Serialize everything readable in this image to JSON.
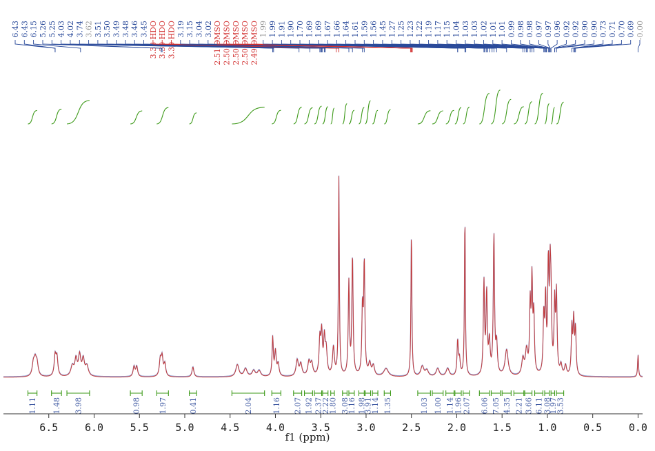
{
  "chart_data": {
    "type": "line",
    "title": "",
    "xlabel": "f1 (ppm)",
    "ylabel": "",
    "xlim": [
      7.0,
      -0.05
    ],
    "x_reversed": true,
    "ticks": [
      "6.5",
      "6.0",
      "5.5",
      "5.0",
      "4.5",
      "4.0",
      "3.5",
      "3.0",
      "2.5",
      "2.0",
      "1.5",
      "1.0",
      "0.5",
      "0.0"
    ],
    "tick_values": [
      6.5,
      6.0,
      5.5,
      5.0,
      4.5,
      4.0,
      3.5,
      3.0,
      2.5,
      2.0,
      1.5,
      1.0,
      0.5,
      0.0
    ],
    "peak_labels": [
      {
        "text": "6.43",
        "color": "#2a4a9a"
      },
      {
        "text": "6.43",
        "color": "#2a4a9a"
      },
      {
        "text": "6.15",
        "color": "#2a4a9a"
      },
      {
        "text": "5.26",
        "color": "#2a4a9a"
      },
      {
        "text": "5.25",
        "color": "#2a4a9a"
      },
      {
        "text": "4.03",
        "color": "#2a4a9a"
      },
      {
        "text": "4.02",
        "color": "#2a4a9a"
      },
      {
        "text": "3.74",
        "color": "#2a4a9a"
      },
      {
        "text": "3.62",
        "color": "#999999"
      },
      {
        "text": "3.51",
        "color": "#2a4a9a"
      },
      {
        "text": "3.50",
        "color": "#2a4a9a"
      },
      {
        "text": "3.49",
        "color": "#2a4a9a"
      },
      {
        "text": "3.48",
        "color": "#2a4a9a"
      },
      {
        "text": "3.46",
        "color": "#2a4a9a"
      },
      {
        "text": "3.45",
        "color": "#2a4a9a"
      },
      {
        "text": "3.33 HDO",
        "color": "#d23030"
      },
      {
        "text": "3.30 HDO",
        "color": "#d23030"
      },
      {
        "text": "3.30 HDO",
        "color": "#d23030"
      },
      {
        "text": "3.19",
        "color": "#2a4a9a"
      },
      {
        "text": "3.15",
        "color": "#2a4a9a"
      },
      {
        "text": "3.04",
        "color": "#2a4a9a"
      },
      {
        "text": "3.02",
        "color": "#2a4a9a"
      },
      {
        "text": "2.51 DMSO",
        "color": "#d23030"
      },
      {
        "text": "2.50 DMSO",
        "color": "#d23030"
      },
      {
        "text": "2.50 DMSO",
        "color": "#d23030"
      },
      {
        "text": "2.50 DMSO",
        "color": "#d23030"
      },
      {
        "text": "2.49 DMSO",
        "color": "#d23030"
      },
      {
        "text": "1.99",
        "color": "#999999"
      },
      {
        "text": "1.99",
        "color": "#2a4a9a"
      },
      {
        "text": "1.91",
        "color": "#2a4a9a"
      },
      {
        "text": "1.90",
        "color": "#2a4a9a"
      },
      {
        "text": "1.70",
        "color": "#2a4a9a"
      },
      {
        "text": "1.69",
        "color": "#2a4a9a"
      },
      {
        "text": "1.69",
        "color": "#2a4a9a"
      },
      {
        "text": "1.67",
        "color": "#2a4a9a"
      },
      {
        "text": "1.66",
        "color": "#2a4a9a"
      },
      {
        "text": "1.64",
        "color": "#2a4a9a"
      },
      {
        "text": "1.61",
        "color": "#2a4a9a"
      },
      {
        "text": "1.59",
        "color": "#2a4a9a"
      },
      {
        "text": "1.56",
        "color": "#2a4a9a"
      },
      {
        "text": "1.45",
        "color": "#2a4a9a"
      },
      {
        "text": "1.27",
        "color": "#2a4a9a"
      },
      {
        "text": "1.25",
        "color": "#2a4a9a"
      },
      {
        "text": "1.23",
        "color": "#2a4a9a"
      },
      {
        "text": "1.22",
        "color": "#2a4a9a"
      },
      {
        "text": "1.19",
        "color": "#2a4a9a"
      },
      {
        "text": "1.17",
        "color": "#2a4a9a"
      },
      {
        "text": "1.15",
        "color": "#2a4a9a"
      },
      {
        "text": "1.04",
        "color": "#2a4a9a"
      },
      {
        "text": "1.03",
        "color": "#2a4a9a"
      },
      {
        "text": "1.03",
        "color": "#2a4a9a"
      },
      {
        "text": "1.02",
        "color": "#2a4a9a"
      },
      {
        "text": "1.01",
        "color": "#2a4a9a"
      },
      {
        "text": "1.01",
        "color": "#2a4a9a"
      },
      {
        "text": "0.99",
        "color": "#2a4a9a"
      },
      {
        "text": "0.98",
        "color": "#2a4a9a"
      },
      {
        "text": "0.98",
        "color": "#2a4a9a"
      },
      {
        "text": "0.97",
        "color": "#2a4a9a"
      },
      {
        "text": "0.97",
        "color": "#2a4a9a"
      },
      {
        "text": "0.96",
        "color": "#2a4a9a"
      },
      {
        "text": "0.92",
        "color": "#2a4a9a"
      },
      {
        "text": "0.92",
        "color": "#2a4a9a"
      },
      {
        "text": "0.90",
        "color": "#2a4a9a"
      },
      {
        "text": "0.90",
        "color": "#2a4a9a"
      },
      {
        "text": "0.73",
        "color": "#2a4a9a"
      },
      {
        "text": "0.71",
        "color": "#2a4a9a"
      },
      {
        "text": "0.70",
        "color": "#2a4a9a"
      },
      {
        "text": "0.69",
        "color": "#2a4a9a"
      },
      {
        "text": "-0.00",
        "color": "#999999"
      }
    ],
    "integrals": [
      {
        "from": 6.73,
        "to": 6.63,
        "value": "1.11"
      },
      {
        "from": 6.47,
        "to": 6.36,
        "value": "1.48"
      },
      {
        "from": 6.3,
        "to": 6.05,
        "value": "3.98"
      },
      {
        "from": 5.6,
        "to": 5.47,
        "value": "0.98"
      },
      {
        "from": 5.31,
        "to": 5.18,
        "value": "1.97"
      },
      {
        "from": 4.95,
        "to": 4.87,
        "value": "0.41"
      },
      {
        "from": 4.48,
        "to": 4.12,
        "value": "2.04"
      },
      {
        "from": 4.04,
        "to": 3.94,
        "value": "1.16"
      },
      {
        "from": 3.8,
        "to": 3.71,
        "value": "2.07"
      },
      {
        "from": 3.68,
        "to": 3.59,
        "value": "1.92"
      },
      {
        "from": 3.57,
        "to": 3.49,
        "value": "2.37"
      },
      {
        "from": 3.48,
        "to": 3.42,
        "value": "2.22"
      },
      {
        "from": 3.39,
        "to": 3.35,
        "value": "1.80"
      },
      {
        "from": 3.26,
        "to": 3.21,
        "value": "3.08"
      },
      {
        "from": 3.19,
        "to": 3.13,
        "value": "1.16"
      },
      {
        "from": 3.08,
        "to": 3.02,
        "value": "1.98"
      },
      {
        "from": 3.01,
        "to": 2.95,
        "value": "3.91"
      },
      {
        "from": 2.93,
        "to": 2.87,
        "value": "1.14"
      },
      {
        "from": 2.8,
        "to": 2.73,
        "value": "1.35"
      },
      {
        "from": 2.43,
        "to": 2.29,
        "value": "1.03"
      },
      {
        "from": 2.27,
        "to": 2.15,
        "value": "1.00"
      },
      {
        "from": 2.12,
        "to": 2.03,
        "value": "1.14"
      },
      {
        "from": 2.02,
        "to": 1.95,
        "value": "1.96"
      },
      {
        "from": 1.93,
        "to": 1.86,
        "value": "2.07"
      },
      {
        "from": 1.75,
        "to": 1.64,
        "value": "6.06"
      },
      {
        "from": 1.62,
        "to": 1.52,
        "value": "7.05"
      },
      {
        "from": 1.5,
        "to": 1.4,
        "value": "4.35"
      },
      {
        "from": 1.37,
        "to": 1.26,
        "value": "2.21"
      },
      {
        "from": 1.25,
        "to": 1.17,
        "value": "3.66"
      },
      {
        "from": 1.14,
        "to": 1.05,
        "value": "6.11"
      },
      {
        "from": 1.03,
        "to": 0.98,
        "value": "3.08"
      },
      {
        "from": 0.96,
        "to": 0.92,
        "value": "1.97"
      },
      {
        "from": 0.9,
        "to": 0.82,
        "value": "3.53"
      }
    ],
    "peaks": [
      {
        "ppm": 6.67,
        "h": 0.06,
        "w": 0.015
      },
      {
        "ppm": 6.65,
        "h": 0.07,
        "w": 0.015
      },
      {
        "ppm": 6.63,
        "h": 0.06,
        "w": 0.015
      },
      {
        "ppm": 6.43,
        "h": 0.1,
        "w": 0.012
      },
      {
        "ppm": 6.41,
        "h": 0.09,
        "w": 0.012
      },
      {
        "ppm": 6.24,
        "h": 0.05,
        "w": 0.02
      },
      {
        "ppm": 6.2,
        "h": 0.08,
        "w": 0.015
      },
      {
        "ppm": 6.16,
        "h": 0.1,
        "w": 0.015
      },
      {
        "ppm": 6.12,
        "h": 0.08,
        "w": 0.015
      },
      {
        "ppm": 6.08,
        "h": 0.05,
        "w": 0.02
      },
      {
        "ppm": 5.56,
        "h": 0.05,
        "w": 0.012
      },
      {
        "ppm": 5.53,
        "h": 0.05,
        "w": 0.012
      },
      {
        "ppm": 5.27,
        "h": 0.08,
        "w": 0.012
      },
      {
        "ppm": 5.25,
        "h": 0.09,
        "w": 0.012
      },
      {
        "ppm": 5.22,
        "h": 0.06,
        "w": 0.012
      },
      {
        "ppm": 4.91,
        "h": 0.05,
        "w": 0.012
      },
      {
        "ppm": 4.42,
        "h": 0.06,
        "w": 0.02
      },
      {
        "ppm": 4.33,
        "h": 0.04,
        "w": 0.02
      },
      {
        "ppm": 4.24,
        "h": 0.03,
        "w": 0.02
      },
      {
        "ppm": 4.18,
        "h": 0.03,
        "w": 0.02
      },
      {
        "ppm": 4.03,
        "h": 0.19,
        "w": 0.008
      },
      {
        "ppm": 4.0,
        "h": 0.12,
        "w": 0.01
      },
      {
        "ppm": 3.97,
        "h": 0.06,
        "w": 0.012
      },
      {
        "ppm": 3.76,
        "h": 0.08,
        "w": 0.015
      },
      {
        "ppm": 3.72,
        "h": 0.06,
        "w": 0.015
      },
      {
        "ppm": 3.63,
        "h": 0.07,
        "w": 0.015
      },
      {
        "ppm": 3.6,
        "h": 0.06,
        "w": 0.015
      },
      {
        "ppm": 3.51,
        "h": 0.17,
        "w": 0.01
      },
      {
        "ppm": 3.49,
        "h": 0.2,
        "w": 0.01
      },
      {
        "ppm": 3.46,
        "h": 0.17,
        "w": 0.01
      },
      {
        "ppm": 3.44,
        "h": 0.12,
        "w": 0.012
      },
      {
        "ppm": 3.36,
        "h": 0.14,
        "w": 0.012
      },
      {
        "ppm": 3.3,
        "h": 0.98,
        "w": 0.006
      },
      {
        "ppm": 3.19,
        "h": 0.46,
        "w": 0.008
      },
      {
        "ppm": 3.15,
        "h": 0.59,
        "w": 0.008
      },
      {
        "ppm": 3.04,
        "h": 0.32,
        "w": 0.008
      },
      {
        "ppm": 3.02,
        "h": 0.55,
        "w": 0.008
      },
      {
        "ppm": 2.96,
        "h": 0.06,
        "w": 0.015
      },
      {
        "ppm": 2.92,
        "h": 0.05,
        "w": 0.015
      },
      {
        "ppm": 2.78,
        "h": 0.04,
        "w": 0.03
      },
      {
        "ppm": 2.5,
        "h": 0.72,
        "w": 0.006
      },
      {
        "ppm": 2.38,
        "h": 0.05,
        "w": 0.02
      },
      {
        "ppm": 2.33,
        "h": 0.03,
        "w": 0.02
      },
      {
        "ppm": 2.21,
        "h": 0.04,
        "w": 0.02
      },
      {
        "ppm": 2.1,
        "h": 0.04,
        "w": 0.02
      },
      {
        "ppm": 1.99,
        "h": 0.17,
        "w": 0.008
      },
      {
        "ppm": 1.97,
        "h": 0.08,
        "w": 0.01
      },
      {
        "ppm": 1.91,
        "h": 0.79,
        "w": 0.006
      },
      {
        "ppm": 1.7,
        "h": 0.46,
        "w": 0.008
      },
      {
        "ppm": 1.67,
        "h": 0.4,
        "w": 0.008
      },
      {
        "ppm": 1.64,
        "h": 0.16,
        "w": 0.01
      },
      {
        "ppm": 1.59,
        "h": 0.69,
        "w": 0.008
      },
      {
        "ppm": 1.56,
        "h": 0.15,
        "w": 0.01
      },
      {
        "ppm": 1.45,
        "h": 0.13,
        "w": 0.02
      },
      {
        "ppm": 1.27,
        "h": 0.08,
        "w": 0.015
      },
      {
        "ppm": 1.23,
        "h": 0.12,
        "w": 0.015
      },
      {
        "ppm": 1.19,
        "h": 0.33,
        "w": 0.008
      },
      {
        "ppm": 1.17,
        "h": 0.45,
        "w": 0.008
      },
      {
        "ppm": 1.15,
        "h": 0.28,
        "w": 0.008
      },
      {
        "ppm": 1.04,
        "h": 0.28,
        "w": 0.008
      },
      {
        "ppm": 1.02,
        "h": 0.36,
        "w": 0.008
      },
      {
        "ppm": 0.99,
        "h": 0.52,
        "w": 0.008
      },
      {
        "ppm": 0.97,
        "h": 0.44,
        "w": 0.008
      },
      {
        "ppm": 0.96,
        "h": 0.29,
        "w": 0.008
      },
      {
        "ppm": 0.92,
        "h": 0.34,
        "w": 0.008
      },
      {
        "ppm": 0.9,
        "h": 0.39,
        "w": 0.008
      },
      {
        "ppm": 0.85,
        "h": 0.05,
        "w": 0.012
      },
      {
        "ppm": 0.8,
        "h": 0.05,
        "w": 0.012
      },
      {
        "ppm": 0.73,
        "h": 0.23,
        "w": 0.008
      },
      {
        "ppm": 0.71,
        "h": 0.26,
        "w": 0.008
      },
      {
        "ppm": 0.69,
        "h": 0.22,
        "w": 0.008
      },
      {
        "ppm": 0.0,
        "h": 0.11,
        "w": 0.006
      }
    ],
    "colors": {
      "spectrum": "#c33b3b",
      "spectrum_overlay": "#3a55b0",
      "integral": "#3e9a1a",
      "label_blue": "#2a4a9a",
      "label_red": "#d23030",
      "axis": "#333333"
    },
    "grid": false
  }
}
